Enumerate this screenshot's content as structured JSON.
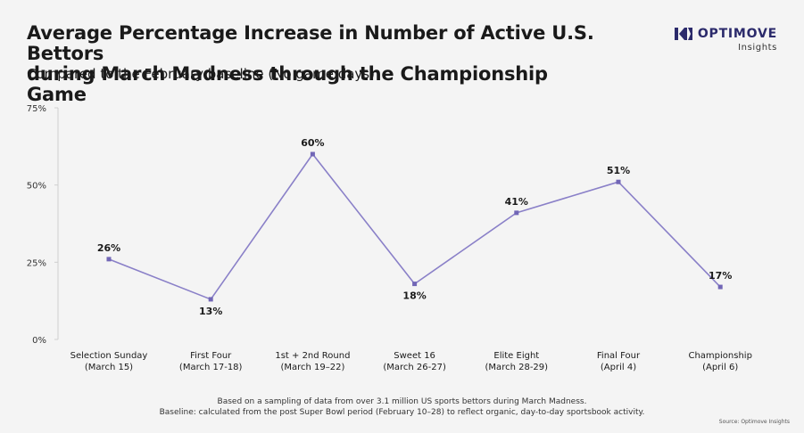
{
  "header": {
    "title_line1": "Average Percentage Increase in Number of Active U.S. Bettors",
    "title_line2": "during March Madness through the Championship Game",
    "subtitle": "Compared to the February baseline (No game days)"
  },
  "brand": {
    "name": "OPTIMOVE",
    "sub": "Insights",
    "color": "#2b2a6b"
  },
  "footnotes": {
    "line1": "Based on a sampling of data from over 3.1 million US sports bettors during March Madness.",
    "line2": "Baseline: calculated from the post Super Bowl period (February 10–28) to reflect organic, day-to-day sportsbook activity.",
    "source": "Source: Optimove Insights"
  },
  "chart_data": {
    "type": "line",
    "title": "Average Percentage Increase in Number of Active U.S. Bettors during March Madness through the Championship Game",
    "subtitle": "Compared to the February baseline (No game days)",
    "categories": [
      [
        "Selection Sunday",
        "(March 15)"
      ],
      [
        "First Four",
        "(March 17-18)"
      ],
      [
        "1st + 2nd Round",
        "(March 19–22)"
      ],
      [
        "Sweet 16",
        "(March 26-27)"
      ],
      [
        "Elite Eight",
        "(March 28-29)"
      ],
      [
        "Final Four",
        "(April 4)"
      ],
      [
        "Championship",
        "(April 6)"
      ]
    ],
    "values": [
      26,
      13,
      60,
      18,
      41,
      51,
      17
    ],
    "data_labels": [
      "26%",
      "13%",
      "60%",
      "18%",
      "41%",
      "51%",
      "17%"
    ],
    "label_side": [
      "above",
      "below",
      "above",
      "below",
      "above",
      "above",
      "above"
    ],
    "ylim": [
      0,
      75
    ],
    "yticks": [
      0,
      25,
      50,
      75
    ],
    "ytick_labels": [
      "0%",
      "25%",
      "50%",
      "75%"
    ],
    "line_color": "#8a80c8",
    "marker_color": "#7166b6",
    "grid": false
  }
}
